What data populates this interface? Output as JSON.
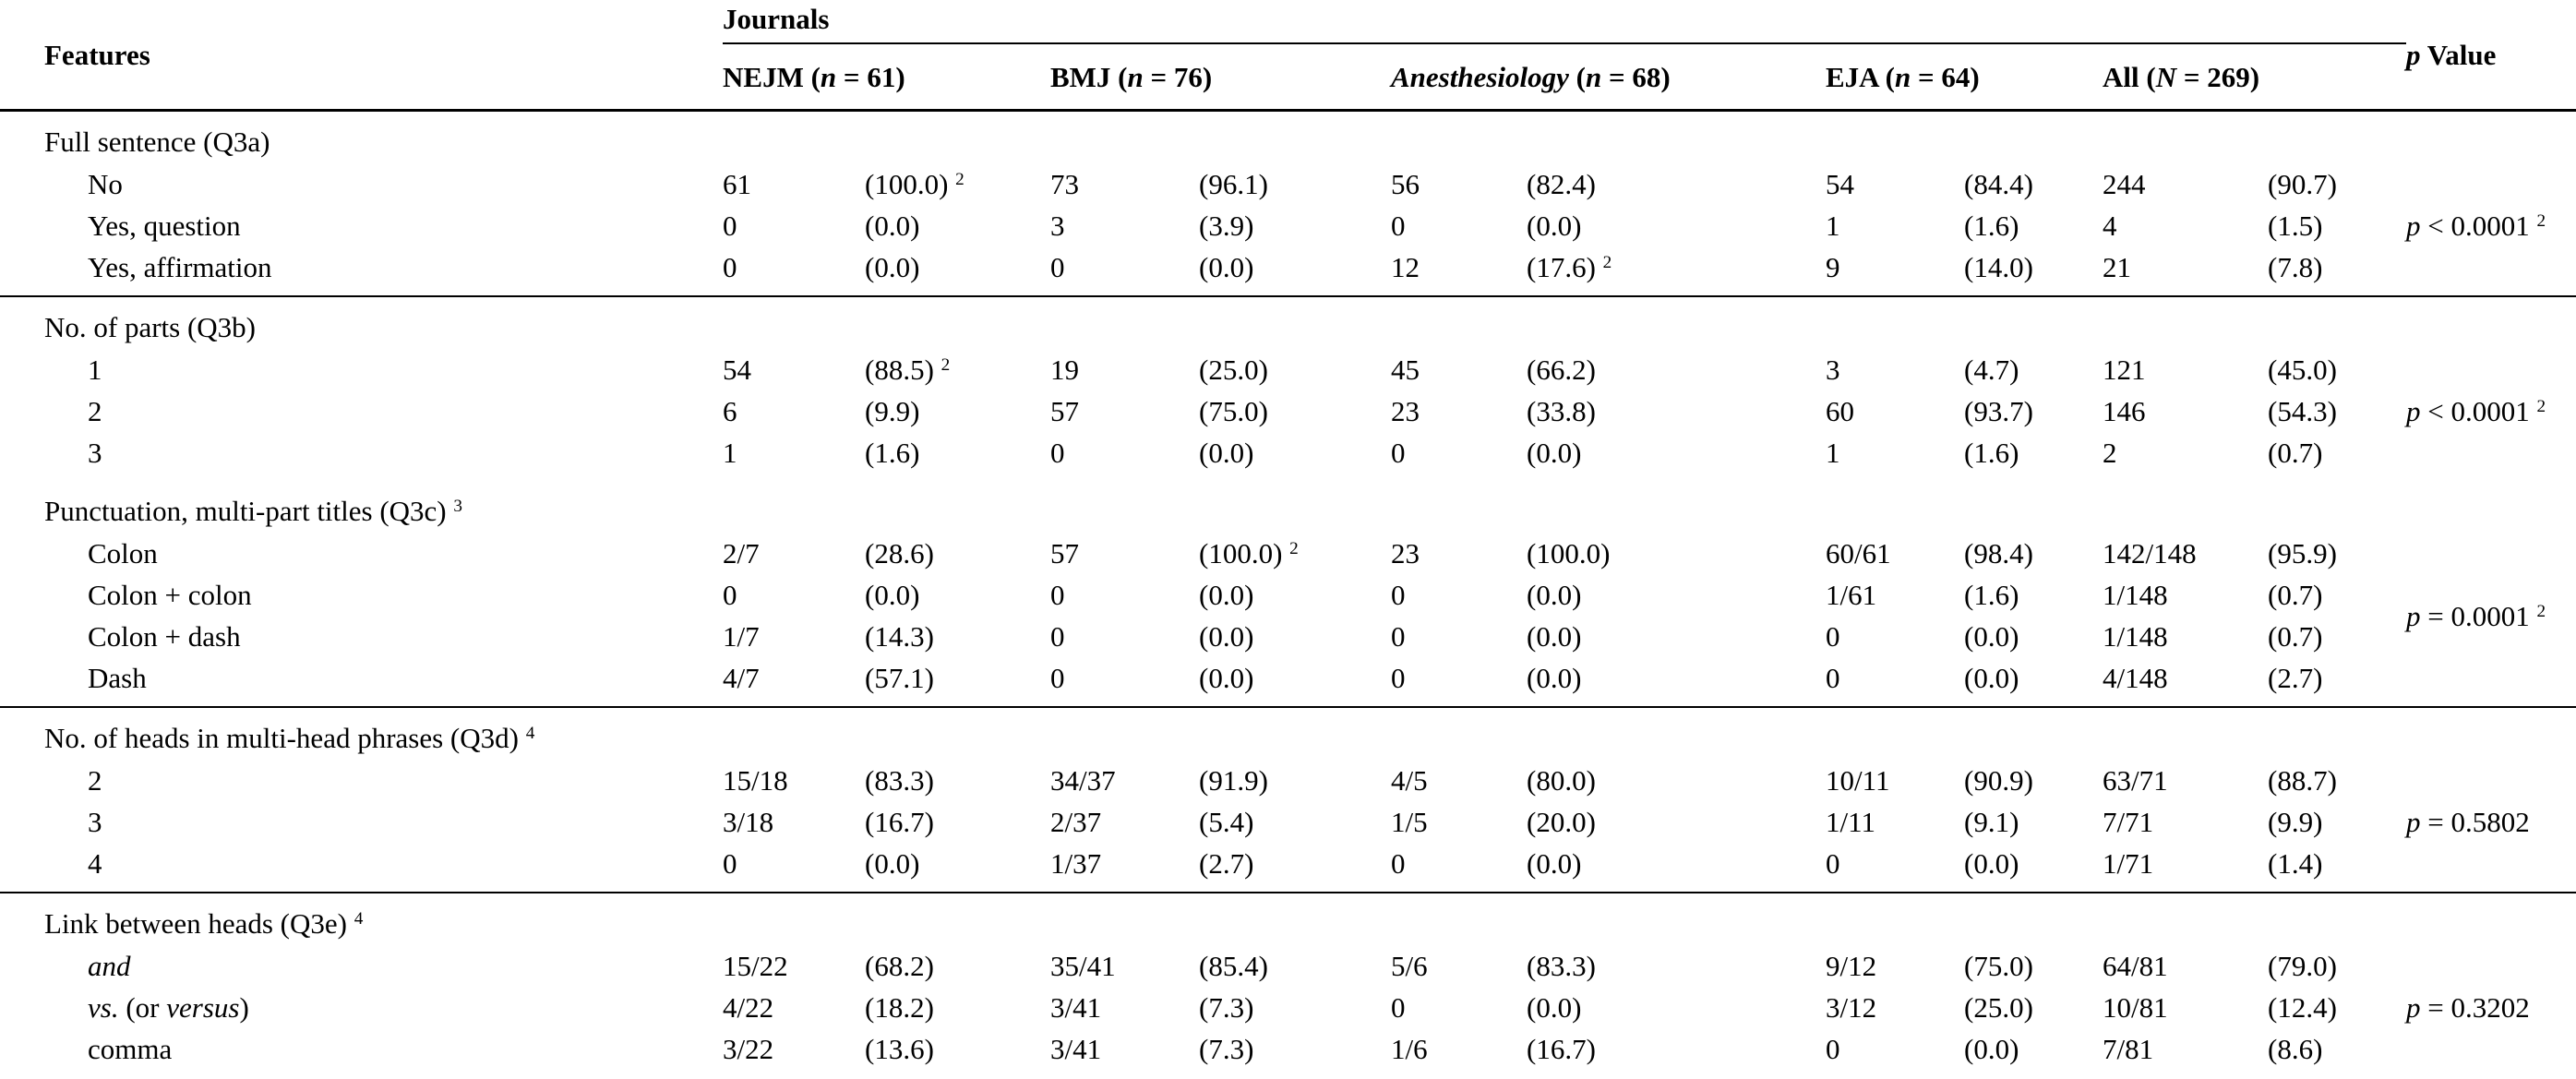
{
  "header": {
    "features_label": "Features",
    "journals_label": "Journals",
    "p_value_label": "~p~ Value",
    "columns": [
      {
        "label": "NEJM (~n~ = 61)"
      },
      {
        "label": "BMJ (~n~ = 76)"
      },
      {
        "label": "~Anesthesiology~ (~n~ = 68)"
      },
      {
        "label": "EJA (~n~ = 64)"
      },
      {
        "label": "All (~N~ = 269)"
      }
    ]
  },
  "sections": [
    {
      "id": "q3a",
      "title": "Full sentence (Q3a)",
      "p_value": "~p~ < 0.0001 ^2",
      "rule_after": true,
      "rows": [
        {
          "label": "No",
          "cells": [
            "61",
            "(100.0) ^2",
            "73",
            "(96.1)",
            "56",
            "(82.4)",
            "54",
            "(84.4)",
            "244",
            "(90.7)"
          ]
        },
        {
          "label": "Yes, question",
          "cells": [
            "0",
            "(0.0)",
            "3",
            "(3.9)",
            "0",
            "(0.0)",
            "1",
            "(1.6)",
            "4",
            "(1.5)"
          ]
        },
        {
          "label": "Yes, affirmation",
          "cells": [
            "0",
            "(0.0)",
            "0",
            "(0.0)",
            "12",
            "(17.6) ^2",
            "9",
            "(14.0)",
            "21",
            "(7.8)"
          ]
        }
      ]
    },
    {
      "id": "q3b",
      "title": "No. of parts (Q3b)",
      "p_value": "~p~ < 0.0001 ^2",
      "rule_after": false,
      "rows": [
        {
          "label": "1",
          "cells": [
            "54",
            "(88.5) ^2",
            "19",
            "(25.0)",
            "45",
            "(66.2)",
            "3",
            "(4.7)",
            "121",
            "(45.0)"
          ]
        },
        {
          "label": "2",
          "cells": [
            "6",
            "(9.9)",
            "57",
            "(75.0)",
            "23",
            "(33.8)",
            "60",
            "(93.7)",
            "146",
            "(54.3)"
          ]
        },
        {
          "label": "3",
          "cells": [
            "1",
            "(1.6)",
            "0",
            "(0.0)",
            "0",
            "(0.0)",
            "1",
            "(1.6)",
            "2",
            "(0.7)"
          ]
        }
      ]
    },
    {
      "id": "q3c",
      "title": "Punctuation, multi-part titles (Q3c) ^3",
      "p_value": "~p~ = 0.0001 ^2",
      "rule_after": true,
      "rows": [
        {
          "label": "Colon",
          "cells": [
            "2/7",
            "(28.6)",
            "57",
            "(100.0) ^2",
            "23",
            "(100.0)",
            "60/61",
            "(98.4)",
            "142/148",
            "(95.9)"
          ]
        },
        {
          "label": "Colon + colon",
          "cells": [
            "0",
            "(0.0)",
            "0",
            "(0.0)",
            "0",
            "(0.0)",
            "1/61",
            "(1.6)",
            "1/148",
            "(0.7)"
          ]
        },
        {
          "label": "Colon + dash",
          "cells": [
            "1/7",
            "(14.3)",
            "0",
            "(0.0)",
            "0",
            "(0.0)",
            "0",
            "(0.0)",
            "1/148",
            "(0.7)"
          ]
        },
        {
          "label": "Dash",
          "cells": [
            "4/7",
            "(57.1)",
            "0",
            "(0.0)",
            "0",
            "(0.0)",
            "0",
            "(0.0)",
            "4/148",
            "(2.7)"
          ]
        }
      ]
    },
    {
      "id": "q3d",
      "title": "No. of heads in multi-head phrases (Q3d) ^4",
      "p_value": "~p~ = 0.5802",
      "rule_after": true,
      "rows": [
        {
          "label": "2",
          "cells": [
            "15/18",
            "(83.3)",
            "34/37",
            "(91.9)",
            "4/5",
            "(80.0)",
            "10/11",
            "(90.9)",
            "63/71",
            "(88.7)"
          ]
        },
        {
          "label": "3",
          "cells": [
            "3/18",
            "(16.7)",
            "2/37",
            "(5.4)",
            "1/5",
            "(20.0)",
            "1/11",
            "(9.1)",
            "7/71",
            "(9.9)"
          ]
        },
        {
          "label": "4",
          "cells": [
            "0",
            "(0.0)",
            "1/37",
            "(2.7)",
            "0",
            "(0.0)",
            "0",
            "(0.0)",
            "1/71",
            "(1.4)"
          ]
        }
      ]
    },
    {
      "id": "q3e",
      "title": "Link between heads (Q3e) ^4",
      "p_value": "~p~ = 0.3202",
      "rule_after": false,
      "rows": [
        {
          "label": "~and~",
          "cells": [
            "15/22",
            "(68.2)",
            "35/41",
            "(85.4)",
            "5/6",
            "(83.3)",
            "9/12",
            "(75.0)",
            "64/81",
            "(79.0)"
          ]
        },
        {
          "label": "~vs.~ (or ~versus~)",
          "cells": [
            "4/22",
            "(18.2)",
            "3/41",
            "(7.3)",
            "0",
            "(0.0)",
            "3/12",
            "(25.0)",
            "10/81",
            "(12.4)"
          ]
        },
        {
          "label": "comma",
          "cells": [
            "3/22",
            "(13.6)",
            "3/41",
            "(7.3)",
            "1/6",
            "(16.7)",
            "0",
            "(0.0)",
            "7/81",
            "(8.6)"
          ]
        }
      ]
    }
  ]
}
